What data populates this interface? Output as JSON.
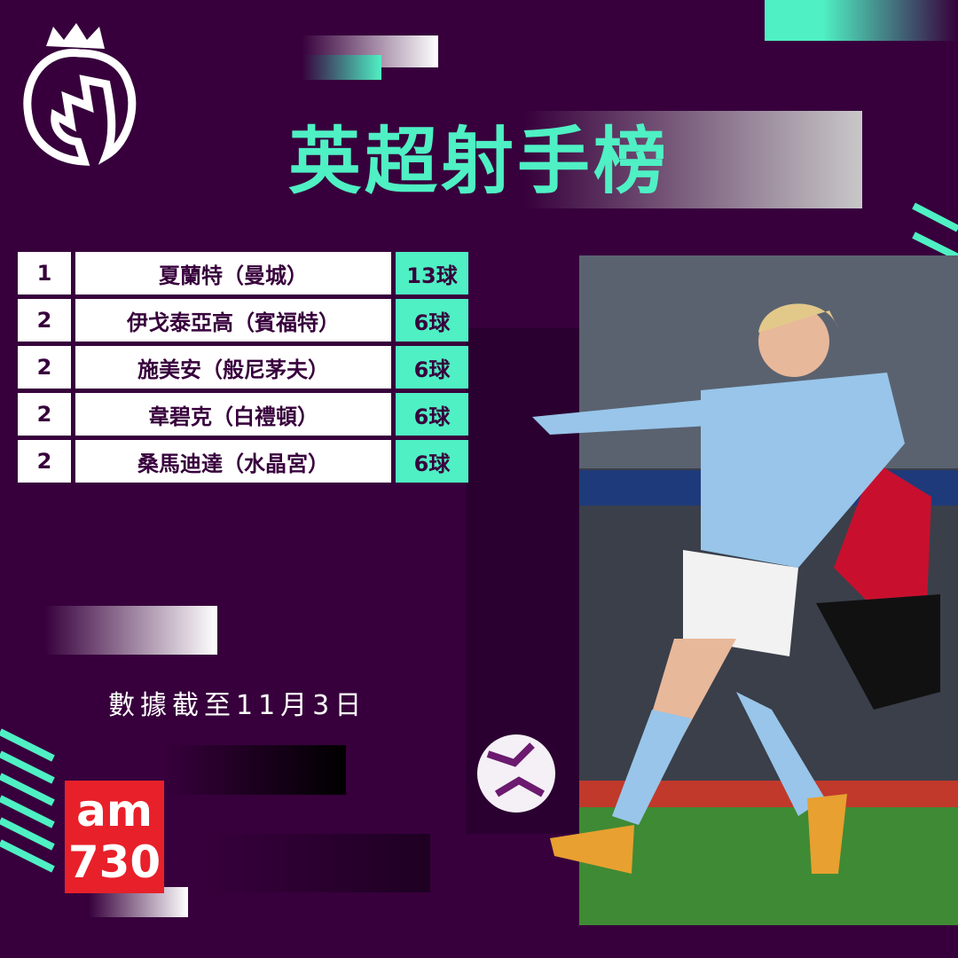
{
  "header": {
    "title": "英超射手榜"
  },
  "table": {
    "rows": [
      [
        "1",
        "夏蘭特（曼城）",
        "13球"
      ],
      [
        "2",
        "伊戈泰亞高（賓福特）",
        "6球"
      ],
      [
        "2",
        "施美安（般尼茅夫）",
        "6球"
      ],
      [
        "2",
        "韋碧克（白禮頓）",
        "6球"
      ],
      [
        "2",
        "桑馬迪達（水晶宮）",
        "6球"
      ]
    ]
  },
  "footer": {
    "note": "數據截至11月3日"
  },
  "logo": {
    "brand": "am",
    "number": "730"
  }
}
